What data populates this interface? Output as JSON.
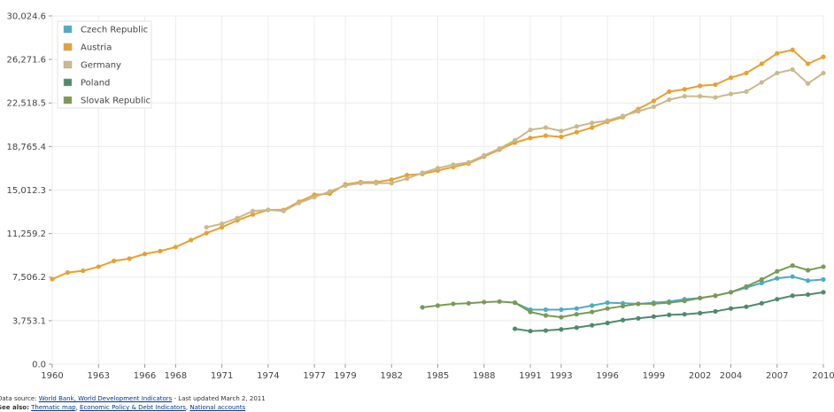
{
  "chart_data": {
    "type": "line",
    "x": [
      1960,
      1961,
      1962,
      1963,
      1964,
      1965,
      1966,
      1967,
      1968,
      1969,
      1970,
      1971,
      1972,
      1973,
      1974,
      1975,
      1976,
      1977,
      1978,
      1979,
      1980,
      1981,
      1982,
      1983,
      1984,
      1985,
      1986,
      1987,
      1988,
      1989,
      1990,
      1991,
      1992,
      1993,
      1994,
      1995,
      1996,
      1997,
      1998,
      1999,
      2000,
      2001,
      2002,
      2003,
      2004,
      2005,
      2006,
      2007,
      2008,
      2009,
      2010
    ],
    "series": [
      {
        "name": "Czech Republic",
        "color": "#4bacc6",
        "values": [
          null,
          null,
          null,
          null,
          null,
          null,
          null,
          null,
          null,
          null,
          null,
          null,
          null,
          null,
          null,
          null,
          null,
          null,
          null,
          null,
          null,
          null,
          null,
          null,
          null,
          null,
          null,
          null,
          null,
          null,
          5300,
          4700,
          4700,
          4700,
          4800,
          5050,
          5300,
          5250,
          5200,
          5300,
          5400,
          5600,
          5700,
          5900,
          6200,
          6600,
          7000,
          7400,
          7550,
          7200,
          7300
        ]
      },
      {
        "name": "Austria",
        "color": "#e8a030",
        "values": [
          7330,
          7900,
          8050,
          8400,
          8900,
          9100,
          9500,
          9750,
          10100,
          10700,
          11300,
          11800,
          12400,
          12900,
          13300,
          13300,
          14000,
          14600,
          14700,
          15500,
          15700,
          15700,
          15900,
          16300,
          16400,
          16700,
          17000,
          17300,
          17900,
          18500,
          19100,
          19500,
          19700,
          19600,
          20000,
          20400,
          20900,
          21300,
          22000,
          22700,
          23500,
          23700,
          24000,
          24100,
          24700,
          25100,
          25900,
          26800,
          27100,
          25900,
          26500
        ]
      },
      {
        "name": "Germany",
        "color": "#c9b98c",
        "values": [
          null,
          null,
          null,
          null,
          null,
          null,
          null,
          null,
          null,
          null,
          11800,
          12100,
          12600,
          13200,
          13300,
          13200,
          13900,
          14400,
          14900,
          15400,
          15600,
          15600,
          15600,
          16000,
          16500,
          16900,
          17200,
          17400,
          18000,
          18600,
          19300,
          20200,
          20400,
          20100,
          20500,
          20800,
          21000,
          21400,
          21800,
          22200,
          22800,
          23100,
          23100,
          23000,
          23300,
          23500,
          24300,
          25100,
          25400,
          24200,
          25100
        ]
      },
      {
        "name": "Poland",
        "color": "#4f8a6e",
        "values": [
          null,
          null,
          null,
          null,
          null,
          null,
          null,
          null,
          null,
          null,
          null,
          null,
          null,
          null,
          null,
          null,
          null,
          null,
          null,
          null,
          null,
          null,
          null,
          null,
          null,
          null,
          null,
          null,
          null,
          null,
          3050,
          2850,
          2900,
          3000,
          3150,
          3350,
          3550,
          3800,
          3950,
          4100,
          4250,
          4300,
          4400,
          4550,
          4800,
          4950,
          5250,
          5600,
          5900,
          6000,
          6200
        ]
      },
      {
        "name": "Slovak Republic",
        "color": "#7a9a55",
        "values": [
          null,
          null,
          null,
          null,
          null,
          null,
          null,
          null,
          null,
          null,
          null,
          null,
          null,
          null,
          null,
          null,
          null,
          null,
          null,
          null,
          null,
          null,
          null,
          null,
          4900,
          5050,
          5200,
          5250,
          5350,
          5400,
          5300,
          4500,
          4200,
          4050,
          4300,
          4500,
          4800,
          5000,
          5200,
          5200,
          5300,
          5450,
          5700,
          5900,
          6200,
          6700,
          7300,
          8000,
          8500,
          8100,
          8400
        ]
      }
    ],
    "xlim": [
      1960,
      2010
    ],
    "xticks": [
      1960,
      1963,
      1966,
      1968,
      1971,
      1974,
      1977,
      1979,
      1982,
      1985,
      1988,
      1991,
      1993,
      1996,
      1999,
      2002,
      2004,
      2007,
      2010
    ],
    "ylim": [
      0,
      30024.6
    ],
    "yticks": [
      {
        "value": 0,
        "label": "0.0"
      },
      {
        "value": 3753.1,
        "label": "3,753.1"
      },
      {
        "value": 7506.2,
        "label": "7,506.2"
      },
      {
        "value": 11259.2,
        "label": "11,259.2"
      },
      {
        "value": 15012.3,
        "label": "15,012.3"
      },
      {
        "value": 18765.4,
        "label": "18,765.4"
      },
      {
        "value": 22518.5,
        "label": "22,518.5"
      },
      {
        "value": 26271.6,
        "label": "26,271.6"
      },
      {
        "value": 30024.6,
        "label": "30,024.6"
      }
    ],
    "grid": true,
    "legend": "upper left"
  },
  "footer": {
    "source_label": "Data source:",
    "source_links": [
      "World Bank, World Development Indicators"
    ],
    "updated": "- Last updated March 2, 2011",
    "see_also_label": "See also:",
    "see_also_links": [
      "Thematic map",
      "Economic Policy & Debt Indicators",
      "National accounts"
    ]
  }
}
